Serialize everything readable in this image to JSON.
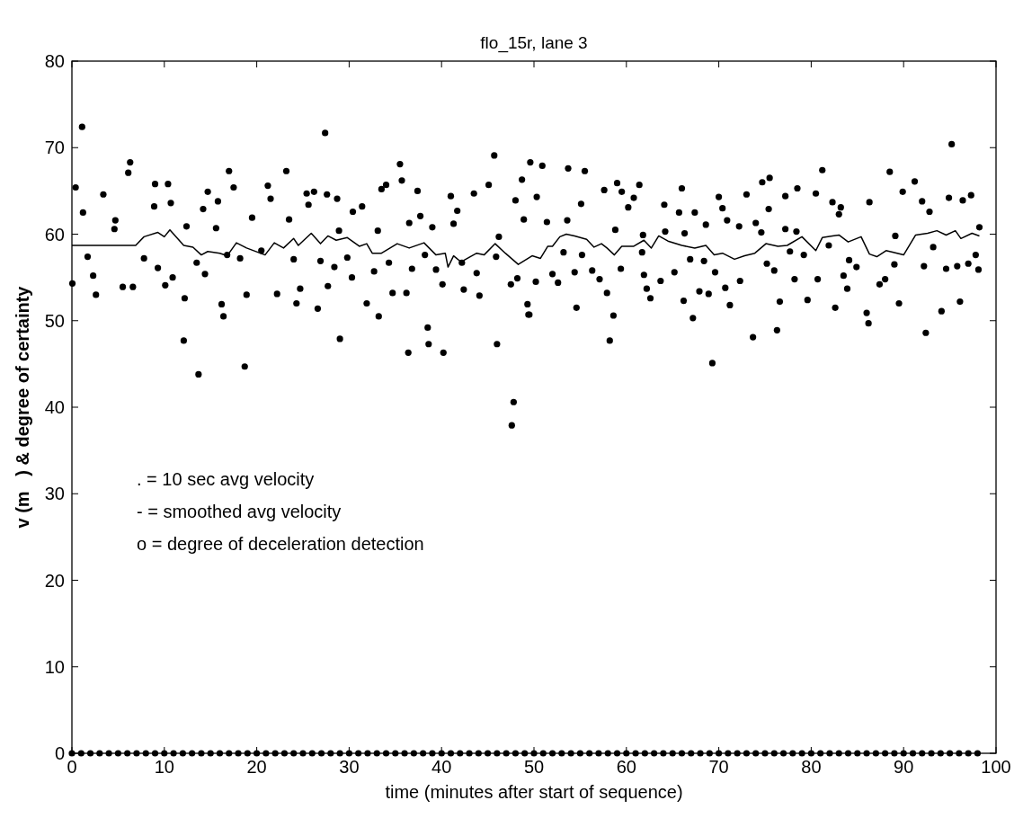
{
  "chart_data": {
    "type": "scatter",
    "title": "flo_15r, lane 3",
    "xlabel": "time (minutes after start of sequence)",
    "ylabel": "v (m   ) & degree of certainty",
    "xlim": [
      0,
      100
    ],
    "xticks": [
      0,
      10,
      20,
      30,
      40,
      50,
      60,
      70,
      80,
      90,
      100
    ],
    "ylim": [
      0,
      80
    ],
    "yticks": [
      0,
      10,
      20,
      30,
      40,
      50,
      60,
      70,
      80
    ],
    "grid": false,
    "annotations": [
      ". = 10 sec avg velocity",
      "- = smoothed avg velocity",
      "o = degree of deceleration detection"
    ],
    "series": [
      {
        "color": "#000000",
        "x": [
          1.1,
          0.4,
          1.2,
          0.05,
          2.6,
          3.4,
          2.3,
          6.3,
          6.1,
          5.5,
          6.6,
          9.0,
          10.4,
          10.7,
          10.1,
          12.1,
          13.7,
          12.2,
          14.7,
          17.0,
          17.5,
          16.2,
          16.4,
          18.7,
          18.9,
          21.2,
          23.2,
          22.2,
          15.8,
          1.7,
          4.6,
          4.7,
          7.8,
          8.9,
          9.3,
          10.9,
          12.4,
          13.5,
          14.2,
          14.4,
          15.6,
          16.8,
          18.2,
          19.5,
          20.5,
          21.5,
          23.5,
          24.0,
          27.4,
          35.5,
          35.7,
          25.4,
          26.2,
          27.6,
          28.7,
          25.6,
          33.5,
          34.0,
          37.4,
          45.7,
          45.1,
          49.6,
          48.7,
          43.5,
          41.0,
          29.0,
          33.2,
          36.4,
          38.5,
          38.6,
          40.2,
          46.0,
          47.8,
          47.6,
          24.3,
          26.6,
          27.7,
          31.9,
          34.7,
          36.2,
          42.4,
          44.1,
          49.3,
          49.4,
          24.7,
          30.4,
          31.4,
          36.5,
          39.0,
          41.7,
          48.9,
          48.0,
          28.4,
          30.3,
          32.7,
          36.8,
          39.4,
          40.1,
          43.8,
          47.5,
          48.2,
          26.9,
          29.8,
          34.3,
          38.2,
          42.2,
          45.9,
          28.9,
          33.1,
          37.7,
          41.3,
          46.2,
          50.9,
          53.7,
          55.5,
          50.3,
          57.6,
          59.0,
          59.5,
          61.4,
          60.8,
          66.0,
          70.0,
          73.0,
          74.7,
          55.1,
          60.2,
          64.1,
          70.4,
          49.5,
          58.2,
          58.6,
          54.6,
          57.9,
          69.3,
          67.2,
          73.7,
          71.2,
          66.2,
          62.6,
          50.2,
          52.6,
          57.1,
          62.2,
          63.7,
          67.9,
          68.9,
          70.7,
          72.3,
          52.0,
          54.4,
          56.3,
          59.4,
          61.9,
          65.2,
          68.4,
          69.6,
          53.2,
          55.2,
          61.7,
          66.9,
          51.4,
          53.6,
          58.8,
          64.2,
          65.7,
          67.4,
          68.6,
          70.9,
          72.2,
          74.0,
          61.8,
          66.3,
          75.5,
          81.2,
          88.5,
          95.2,
          91.2,
          78.5,
          80.5,
          77.2,
          89.9,
          94.9,
          97.3,
          82.3,
          86.3,
          83.2,
          92.0,
          96.4,
          75.4,
          92.8,
          83.0,
          76.3,
          86.2,
          86.0,
          92.4,
          94.1,
          96.1,
          82.6,
          76.6,
          79.6,
          89.5,
          83.9,
          87.4,
          88.0,
          78.2,
          80.7,
          83.5,
          98.1,
          94.6,
          95.8,
          92.2,
          89.0,
          76.0,
          84.9,
          75.2,
          97.8,
          97.0,
          79.2,
          98.2,
          77.2,
          89.1,
          74.6,
          78.4,
          81.9,
          84.1,
          77.7,
          93.2
        ],
        "values": [
          72.4,
          65.4,
          62.5,
          54.3,
          53.0,
          64.6,
          55.2,
          68.3,
          67.1,
          53.9,
          53.9,
          65.8,
          65.8,
          63.6,
          54.1,
          47.7,
          43.8,
          52.6,
          64.9,
          67.3,
          65.4,
          51.9,
          50.5,
          44.7,
          53.0,
          65.6,
          67.3,
          53.1,
          63.8,
          57.4,
          60.6,
          61.6,
          57.2,
          63.2,
          56.1,
          55.0,
          60.9,
          56.7,
          62.9,
          55.4,
          60.7,
          57.6,
          57.2,
          61.9,
          58.1,
          64.1,
          61.7,
          57.1,
          71.7,
          68.1,
          66.2,
          64.7,
          64.9,
          64.6,
          64.1,
          63.4,
          65.2,
          65.7,
          65.0,
          69.1,
          65.7,
          68.3,
          66.3,
          64.7,
          64.4,
          47.9,
          50.5,
          46.3,
          49.2,
          47.3,
          46.3,
          47.3,
          40.6,
          37.9,
          52.0,
          51.4,
          54.0,
          52.0,
          53.2,
          53.2,
          53.6,
          52.9,
          51.9,
          50.7,
          53.7,
          62.6,
          63.2,
          61.3,
          60.8,
          62.7,
          61.7,
          63.9,
          56.2,
          55.0,
          55.7,
          56.0,
          55.9,
          54.2,
          55.5,
          54.2,
          54.9,
          56.9,
          57.3,
          56.7,
          57.6,
          56.7,
          57.4,
          60.4,
          60.4,
          62.1,
          61.2,
          59.7,
          67.9,
          67.6,
          67.3,
          64.3,
          65.1,
          65.9,
          64.9,
          65.7,
          64.2,
          65.3,
          64.3,
          64.6,
          66.0,
          63.5,
          63.1,
          63.4,
          63.0,
          50.7,
          47.7,
          50.6,
          51.5,
          53.2,
          45.1,
          50.3,
          48.1,
          51.8,
          52.3,
          52.6,
          54.5,
          54.4,
          54.8,
          53.7,
          54.6,
          53.4,
          53.1,
          53.8,
          54.6,
          55.4,
          55.6,
          55.8,
          56.0,
          55.3,
          55.6,
          56.9,
          55.6,
          57.9,
          57.6,
          57.9,
          57.1,
          61.4,
          61.6,
          60.5,
          60.3,
          62.5,
          62.5,
          61.1,
          61.6,
          60.9,
          61.3,
          59.9,
          60.1,
          66.5,
          67.4,
          67.2,
          70.4,
          66.1,
          65.3,
          64.7,
          64.4,
          64.9,
          64.2,
          64.5,
          63.7,
          63.7,
          63.1,
          63.8,
          63.9,
          62.9,
          62.6,
          62.3,
          48.9,
          49.7,
          50.9,
          48.6,
          51.1,
          52.2,
          51.5,
          52.2,
          52.4,
          52.0,
          53.7,
          54.2,
          54.8,
          54.8,
          54.8,
          55.2,
          55.9,
          56.0,
          56.3,
          56.3,
          56.5,
          55.8,
          56.2,
          56.6,
          57.6,
          56.6,
          57.6,
          60.8,
          60.6,
          59.8,
          60.2,
          60.3,
          58.7,
          57.0,
          58.0,
          58.5
        ]
      },
      {
        "type": "line",
        "color": "#000000",
        "x": [
          0,
          5.1,
          6.9,
          7.8,
          9.3,
          10.0,
          10.6,
          12.1,
          13.1,
          14.0,
          14.7,
          16.0,
          16.8,
          17.8,
          18.9,
          20.9,
          21.9,
          22.9,
          24.0,
          24.5,
          25.9,
          26.9,
          27.7,
          28.6,
          29.8,
          31.1,
          31.9,
          32.5,
          33.5,
          35.2,
          36.5,
          38.1,
          39.4,
          40.4,
          40.7,
          41.3,
          42.1,
          43.8,
          44.6,
          45.8,
          46.9,
          48.3,
          49.8,
          50.7,
          51.5,
          52.0,
          52.8,
          53.5,
          54.4,
          55.7,
          56.5,
          57.3,
          57.9,
          58.7,
          59.5,
          60.8,
          61.9,
          62.7,
          63.5,
          64.5,
          66.0,
          67.4,
          68.6,
          69.5,
          70.4,
          71.7,
          72.8,
          73.9,
          75.1,
          76.4,
          77.4,
          79.0,
          80.5,
          81.2,
          82.3,
          83.0,
          84.0,
          85.4,
          86.3,
          87.1,
          88.1,
          90.0,
          91.3,
          92.6,
          93.6,
          94.6,
          95.6,
          96.2,
          97.4,
          98.2
        ],
        "values": [
          58.7,
          58.7,
          58.7,
          59.7,
          60.2,
          59.7,
          60.5,
          58.7,
          58.5,
          57.6,
          58.0,
          57.8,
          57.5,
          59.0,
          58.4,
          57.6,
          59.0,
          58.4,
          59.5,
          58.7,
          60.1,
          58.9,
          59.8,
          59.3,
          59.6,
          58.6,
          58.9,
          57.8,
          57.8,
          58.9,
          58.4,
          59.0,
          57.6,
          57.8,
          56.2,
          57.5,
          56.8,
          57.8,
          57.6,
          58.9,
          57.8,
          56.5,
          57.5,
          57.2,
          58.6,
          58.6,
          59.7,
          60.0,
          59.8,
          59.4,
          58.5,
          58.9,
          58.4,
          57.6,
          58.6,
          58.6,
          59.3,
          58.4,
          59.8,
          59.2,
          58.7,
          58.4,
          58.7,
          57.6,
          57.8,
          57.1,
          57.5,
          57.8,
          58.9,
          58.6,
          58.7,
          59.7,
          58.1,
          59.6,
          59.8,
          59.9,
          59.1,
          59.7,
          57.7,
          57.4,
          58.1,
          57.6,
          59.9,
          60.1,
          60.4,
          59.9,
          60.4,
          59.5,
          60.1,
          59.8
        ]
      },
      {
        "color": "#000000",
        "x": [
          0,
          1,
          2,
          3,
          4,
          5,
          6,
          7,
          8,
          9,
          10,
          11,
          12,
          13,
          14,
          15,
          16,
          17,
          18,
          19,
          20,
          21,
          22,
          23,
          24,
          25,
          26,
          27,
          28,
          29,
          30,
          31,
          32,
          33,
          34,
          35,
          36,
          37,
          38,
          39,
          40,
          41,
          42,
          43,
          44,
          45,
          46,
          47,
          48,
          49,
          50,
          51,
          52,
          53,
          54,
          55,
          56,
          57,
          58,
          59,
          60,
          61,
          62,
          63,
          64,
          65,
          66,
          67,
          68,
          69,
          70,
          71,
          72,
          73,
          74,
          75,
          76,
          77,
          78,
          79,
          80,
          81,
          82,
          83,
          84,
          85,
          86,
          87,
          88,
          89,
          90,
          91,
          92,
          93,
          94,
          95,
          96,
          97,
          98
        ],
        "values": [
          0,
          0,
          0,
          0,
          0,
          0,
          0,
          0,
          0,
          0,
          0,
          0,
          0,
          0,
          0,
          0,
          0,
          0,
          0,
          0,
          0,
          0,
          0,
          0,
          0,
          0,
          0,
          0,
          0,
          0,
          0,
          0,
          0,
          0,
          0,
          0,
          0,
          0,
          0,
          0,
          0,
          0,
          0,
          0,
          0,
          0,
          0,
          0,
          0,
          0,
          0,
          0,
          0,
          0,
          0,
          0,
          0,
          0,
          0,
          0,
          0,
          0,
          0,
          0,
          0,
          0,
          0,
          0,
          0,
          0,
          0,
          0,
          0,
          0,
          0,
          0,
          0,
          0,
          0,
          0,
          0,
          0,
          0,
          0,
          0,
          0,
          0,
          0,
          0,
          0,
          0,
          0,
          0,
          0,
          0,
          0,
          0,
          0,
          0
        ]
      }
    ]
  }
}
